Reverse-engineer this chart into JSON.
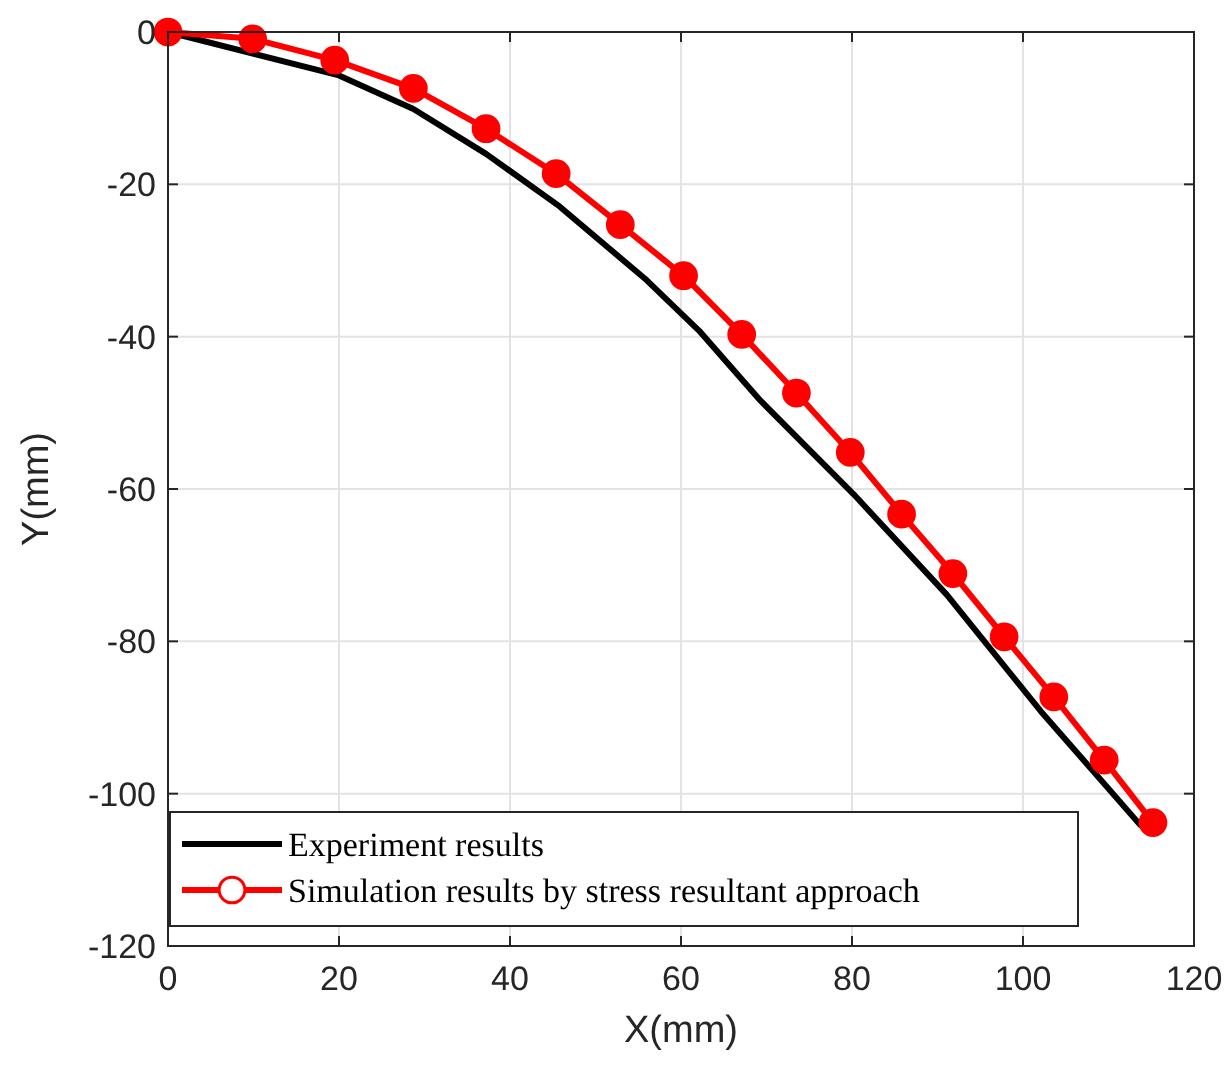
{
  "chart_data": {
    "type": "line",
    "xlabel": "X(mm)",
    "ylabel": "Y(mm)",
    "xlim": [
      0,
      120
    ],
    "ylim": [
      -120,
      0
    ],
    "xticks": [
      0,
      20,
      40,
      60,
      80,
      100,
      120
    ],
    "yticks": [
      -120,
      -100,
      -80,
      -60,
      -40,
      -20,
      0
    ],
    "grid": true,
    "legend": "bottom left",
    "series": [
      {
        "name": "Experiment results",
        "color": "#000000",
        "marker": "none",
        "x": [
          0,
          20,
          28.7,
          37.2,
          45.8,
          56,
          62.1,
          69.3,
          80.2,
          91.1,
          102.1,
          113.7
        ],
        "values": [
          0,
          -5.7,
          -10.1,
          -16,
          -22.9,
          -32.6,
          -39.2,
          -48.4,
          -60.7,
          -73.9,
          -89.2,
          -104.1
        ]
      },
      {
        "name": "Simulation results by stress resultant approach",
        "color": "#ff0000",
        "marker": "circle",
        "x": [
          0,
          9.9,
          19.5,
          28.7,
          37.2,
          45.4,
          52.9,
          60.3,
          67.1,
          73.5,
          79.8,
          85.8,
          91.8,
          97.8,
          103.6,
          109.5,
          115.2
        ],
        "values": [
          0,
          -0.9,
          -3.7,
          -7.4,
          -12.7,
          -18.6,
          -25.3,
          -32,
          -39.7,
          -47.4,
          -55.2,
          -63.3,
          -71.1,
          -79.4,
          -87.3,
          -95.6,
          -103.8
        ]
      }
    ]
  }
}
